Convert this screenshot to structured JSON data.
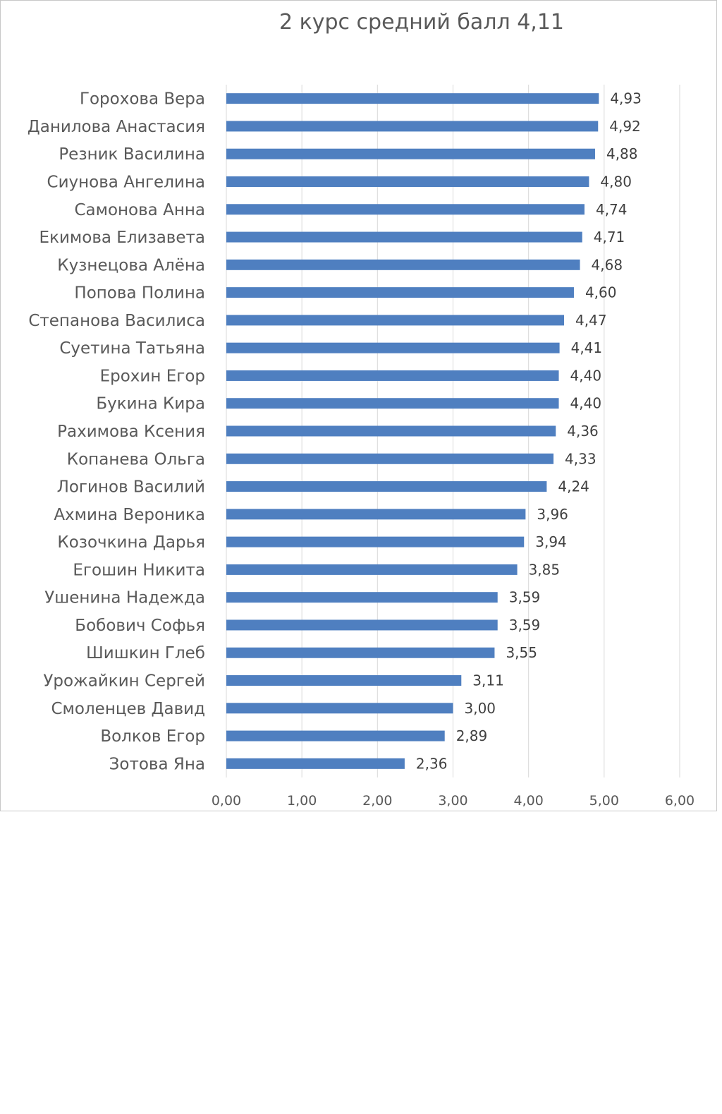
{
  "chart_data": {
    "type": "bar",
    "orientation": "horizontal",
    "title": "2 курс средний балл 4,11",
    "categories": [
      "Горохова Вера",
      "Данилова Анастасия",
      "Резник Василина",
      "Сиунова Ангелина",
      "Самонова Анна",
      "Екимова Елизавета",
      "Кузнецова Алёна",
      "Попова Полина",
      "Степанова Василиса",
      "Суетина Татьяна",
      "Ерохин Егор",
      "Букина Кира",
      "Рахимова Ксения",
      "Копанева Ольга",
      "Логинов Василий",
      "Ахмина Вероника",
      "Козочкина Дарья",
      "Егошин Никита",
      "Ушенина Надежда",
      "Бобович Софья",
      "Шишкин Глеб",
      "Урожайкин Сергей",
      "Смоленцев Давид",
      "Волков Егор",
      "Зотова Яна"
    ],
    "values": [
      4.93,
      4.92,
      4.88,
      4.8,
      4.74,
      4.71,
      4.68,
      4.6,
      4.47,
      4.41,
      4.4,
      4.4,
      4.36,
      4.33,
      4.24,
      3.96,
      3.94,
      3.85,
      3.59,
      3.59,
      3.55,
      3.11,
      3.0,
      2.89,
      2.36
    ],
    "value_labels": [
      "4,93",
      "4,92",
      "4,88",
      "4,80",
      "4,74",
      "4,71",
      "4,68",
      "4,60",
      "4,47",
      "4,41",
      "4,40",
      "4,40",
      "4,36",
      "4,33",
      "4,24",
      "3,96",
      "3,94",
      "3,85",
      "3,59",
      "3,59",
      "3,55",
      "3,11",
      "3,00",
      "2,89",
      "2,36"
    ],
    "xlim": [
      0,
      6
    ],
    "x_ticks": [
      0,
      1,
      2,
      3,
      4,
      5,
      6
    ],
    "x_tick_labels": [
      "0,00",
      "1,00",
      "2,00",
      "3,00",
      "4,00",
      "5,00",
      "6,00"
    ],
    "grid": "vertical",
    "legend": "none",
    "bar_color": "#4f7fc0",
    "grid_color": "#d9d9d9"
  }
}
